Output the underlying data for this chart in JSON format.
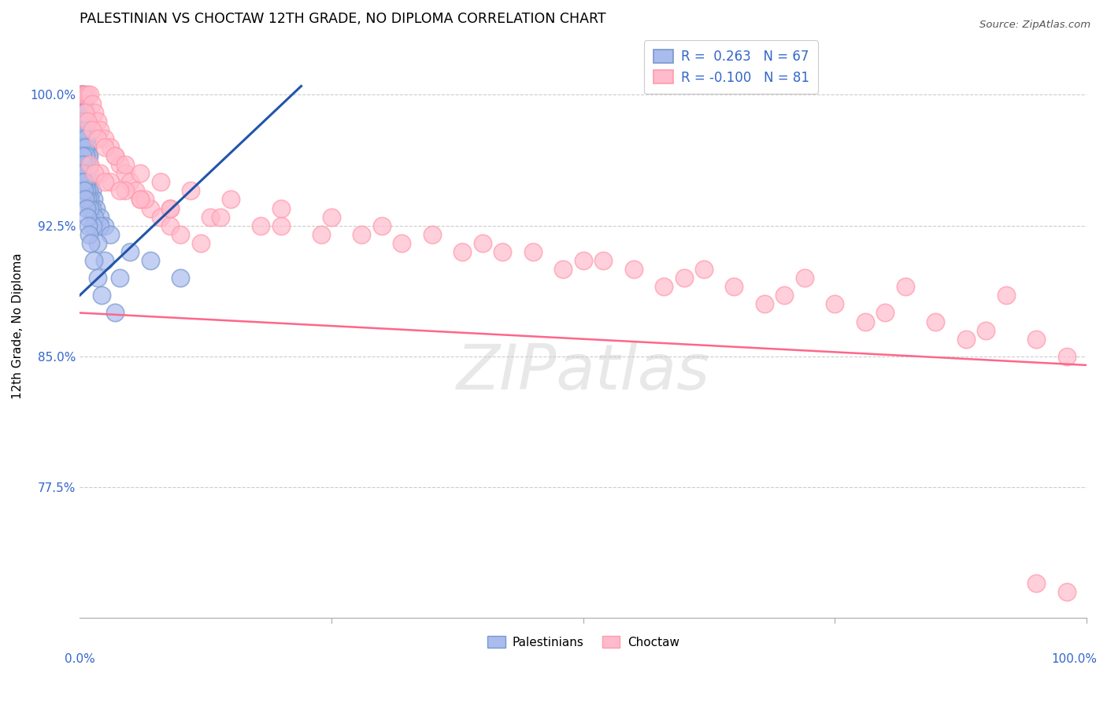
{
  "title": "PALESTINIAN VS CHOCTAW 12TH GRADE, NO DIPLOMA CORRELATION CHART",
  "source": "Source: ZipAtlas.com",
  "ylabel": "12th Grade, No Diploma",
  "ylabel_ticks": [
    77.5,
    85.0,
    92.5,
    100.0
  ],
  "ylabel_tick_labels": [
    "77.5%",
    "85.0%",
    "92.5%",
    "100.0%"
  ],
  "xlim": [
    0.0,
    100.0
  ],
  "ylim": [
    70.0,
    103.5
  ],
  "blue_color": "#aabbee",
  "blue_edge_color": "#7799cc",
  "pink_color": "#ffbbcc",
  "pink_edge_color": "#ff99aa",
  "blue_line_color": "#2255aa",
  "pink_line_color": "#ff6688",
  "title_fontsize": 12.5,
  "watermark_text": "ZIPatlas",
  "blue_trend_x0": 0.0,
  "blue_trend_x1": 22.0,
  "blue_trend_y0": 88.5,
  "blue_trend_y1": 100.5,
  "pink_trend_x0": 0.0,
  "pink_trend_x1": 100.0,
  "pink_trend_y0": 87.5,
  "pink_trend_y1": 84.5,
  "blue_points_x": [
    0.15,
    0.2,
    0.25,
    0.3,
    0.35,
    0.4,
    0.45,
    0.5,
    0.55,
    0.6,
    0.65,
    0.7,
    0.75,
    0.8,
    0.85,
    0.9,
    0.95,
    1.0,
    1.1,
    1.2,
    1.4,
    1.6,
    2.0,
    2.5,
    0.3,
    0.35,
    0.4,
    0.45,
    0.5,
    0.55,
    0.6,
    0.65,
    0.7,
    0.8,
    0.9,
    1.0,
    1.2,
    1.5,
    2.0,
    3.0,
    5.0,
    7.0,
    10.0,
    0.3,
    0.4,
    0.5,
    0.6,
    0.7,
    0.8,
    1.0,
    1.3,
    1.8,
    2.5,
    4.0,
    0.25,
    0.35,
    0.45,
    0.55,
    0.65,
    0.75,
    0.85,
    0.95,
    1.1,
    1.4,
    1.8,
    2.2,
    3.5
  ],
  "blue_points_y": [
    100.0,
    100.0,
    100.0,
    100.0,
    100.0,
    99.5,
    99.5,
    99.0,
    98.5,
    98.0,
    97.5,
    97.5,
    97.0,
    97.0,
    96.5,
    96.5,
    96.0,
    95.5,
    95.0,
    94.5,
    94.0,
    93.5,
    93.0,
    92.5,
    99.5,
    99.0,
    98.5,
    98.0,
    97.5,
    97.0,
    96.5,
    96.0,
    95.5,
    95.0,
    94.5,
    94.0,
    93.5,
    93.0,
    92.5,
    92.0,
    91.0,
    90.5,
    89.5,
    96.5,
    96.0,
    95.5,
    95.0,
    94.5,
    94.0,
    93.5,
    92.5,
    91.5,
    90.5,
    89.5,
    95.5,
    95.0,
    94.5,
    94.0,
    93.5,
    93.0,
    92.5,
    92.0,
    91.5,
    90.5,
    89.5,
    88.5,
    87.5
  ],
  "pink_points_x": [
    0.3,
    0.5,
    0.8,
    1.0,
    1.2,
    1.5,
    1.8,
    2.0,
    2.5,
    3.0,
    3.5,
    4.0,
    4.5,
    5.0,
    5.5,
    6.0,
    7.0,
    8.0,
    9.0,
    10.0,
    12.0,
    0.5,
    0.8,
    1.2,
    1.8,
    2.5,
    3.5,
    4.5,
    6.0,
    8.0,
    11.0,
    15.0,
    20.0,
    25.0,
    30.0,
    35.0,
    40.0,
    45.0,
    50.0,
    55.0,
    60.0,
    65.0,
    70.0,
    75.0,
    80.0,
    85.0,
    90.0,
    95.0,
    2.0,
    3.0,
    4.5,
    6.5,
    9.0,
    13.0,
    18.0,
    24.0,
    32.0,
    42.0,
    52.0,
    62.0,
    72.0,
    82.0,
    92.0,
    1.0,
    1.5,
    2.5,
    4.0,
    6.0,
    9.0,
    14.0,
    20.0,
    28.0,
    38.0,
    48.0,
    58.0,
    68.0,
    78.0,
    88.0,
    98.0,
    98.0,
    95.0
  ],
  "pink_points_y": [
    100.0,
    100.0,
    100.0,
    100.0,
    99.5,
    99.0,
    98.5,
    98.0,
    97.5,
    97.0,
    96.5,
    96.0,
    95.5,
    95.0,
    94.5,
    94.0,
    93.5,
    93.0,
    92.5,
    92.0,
    91.5,
    99.0,
    98.5,
    98.0,
    97.5,
    97.0,
    96.5,
    96.0,
    95.5,
    95.0,
    94.5,
    94.0,
    93.5,
    93.0,
    92.5,
    92.0,
    91.5,
    91.0,
    90.5,
    90.0,
    89.5,
    89.0,
    88.5,
    88.0,
    87.5,
    87.0,
    86.5,
    86.0,
    95.5,
    95.0,
    94.5,
    94.0,
    93.5,
    93.0,
    92.5,
    92.0,
    91.5,
    91.0,
    90.5,
    90.0,
    89.5,
    89.0,
    88.5,
    96.0,
    95.5,
    95.0,
    94.5,
    94.0,
    93.5,
    93.0,
    92.5,
    92.0,
    91.0,
    90.0,
    89.0,
    88.0,
    87.0,
    86.0,
    85.0,
    71.5,
    72.0
  ]
}
